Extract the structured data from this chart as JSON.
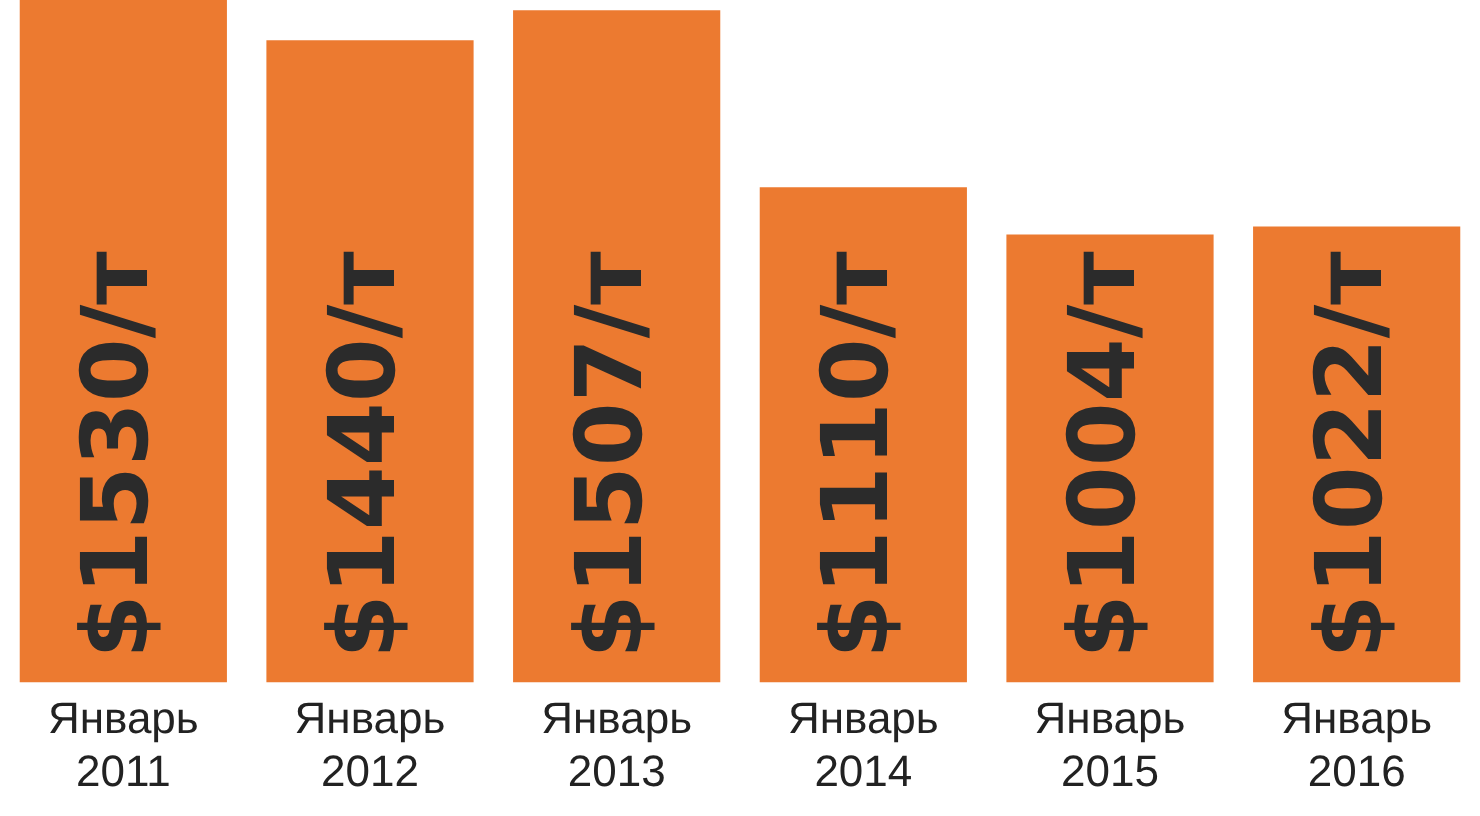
{
  "chart_data": {
    "type": "bar",
    "categories": [
      "Январь 2011",
      "Январь 2012",
      "Январь 2013",
      "Январь 2014",
      "Январь 2015",
      "Январь 2016"
    ],
    "values": [
      1530,
      1440,
      1507,
      1110,
      1004,
      1022
    ],
    "value_labels": [
      "$1530/т",
      "$1440/т",
      "$1507/т",
      "$1110/т",
      "$1004/т",
      "$1022/т"
    ],
    "color": "#ec7a30",
    "grid": false,
    "legend": false
  }
}
